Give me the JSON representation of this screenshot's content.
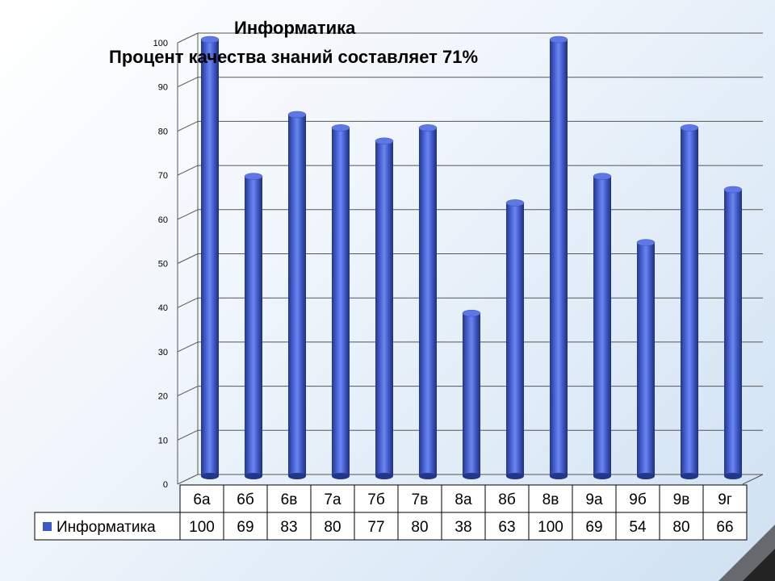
{
  "chart_data": {
    "type": "bar",
    "title": "Информатика",
    "subtitle": "Процент качества знаний составляет 71%",
    "categories": [
      "6а",
      "6б",
      "6в",
      "7а",
      "7б",
      "7в",
      "8а",
      "8б",
      "8в",
      "9а",
      "9б",
      "9в",
      "9г"
    ],
    "series": [
      {
        "name": "Информатика",
        "values": [
          100,
          69,
          83,
          80,
          77,
          80,
          38,
          63,
          100,
          69,
          54,
          80,
          66
        ],
        "color": "#3e58c8"
      }
    ],
    "ylim": [
      0,
      100
    ],
    "yticks": [
      0,
      10,
      20,
      30,
      40,
      50,
      60,
      70,
      80,
      90,
      100
    ],
    "grid": true,
    "legend": "data-table-left",
    "xlabel": "",
    "ylabel": ""
  }
}
